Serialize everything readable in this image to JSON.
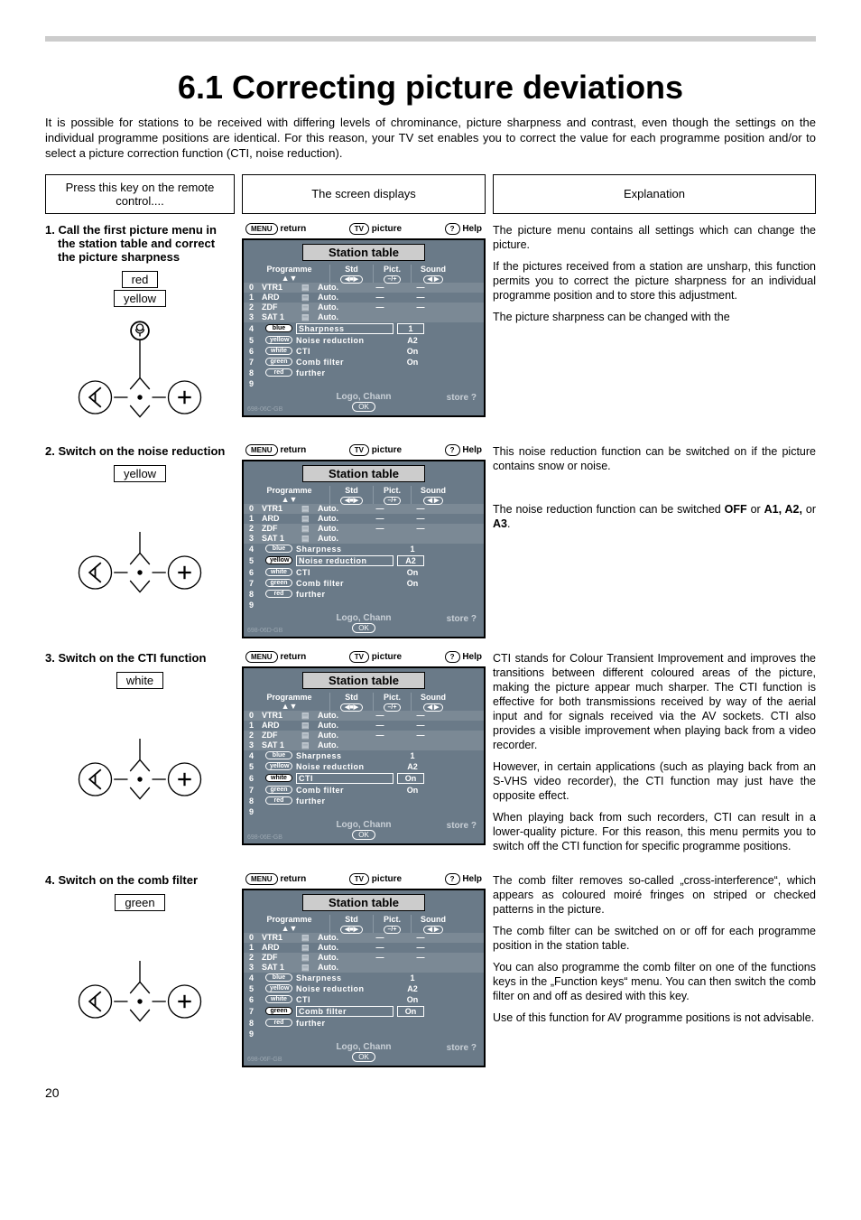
{
  "page_title": "6.1 Correcting picture deviations",
  "page_number": "20",
  "intro": "It is possible for stations to be received with differing levels of chrominance, picture sharpness and contrast, even though the settings on the individual programme positions are identical. For this reason, your TV set enables you to correct the value for each programme position and/or to select a picture correction function (CTI, noise reduction).",
  "header_remote": "Press this key on the remote control....",
  "header_screen": "The screen displays",
  "header_explanation": "Explanation",
  "osd_common": {
    "topbar_return": "return",
    "topbar_return_chip": "MENU",
    "topbar_picture": "picture",
    "topbar_picture_chip": "TV",
    "topbar_help": "Help",
    "topbar_help_chip": "?",
    "title": "Station table",
    "col_programme": "Programme",
    "col_std": "Std",
    "col_pict": "Pict.",
    "col_sound": "Sound",
    "stations": [
      {
        "num": "0",
        "name": "VTR1",
        "std": "Auto.",
        "pict": "—",
        "sound": "—",
        "alt": true
      },
      {
        "num": "1",
        "name": "ARD",
        "std": "Auto.",
        "pict": "—",
        "sound": "—",
        "alt": false
      },
      {
        "num": "2",
        "name": "ZDF",
        "std": "Auto.",
        "pict": "—",
        "sound": "—",
        "alt": true
      },
      {
        "num": "3",
        "name": "SAT 1",
        "std": "Auto.",
        "pict": "",
        "sound": "",
        "alt": true
      }
    ],
    "funcs": [
      {
        "num": "4"
      },
      {
        "num": "5"
      },
      {
        "num": "6"
      },
      {
        "num": "7"
      },
      {
        "num": "8"
      },
      {
        "num": "9"
      }
    ],
    "func_labels": {
      "sharpness": "Sharpness",
      "noise": "Noise reduction",
      "cti": "CTI",
      "comb": "Comb filter",
      "further": "further"
    },
    "func_vals": {
      "sharpness": "1",
      "noise": "A2",
      "cti": "On",
      "comb": "On"
    },
    "chip_blue": "blue",
    "chip_yellow": "yellow",
    "chip_white": "white",
    "chip_green": "green",
    "chip_red": "red",
    "logo": "Logo, Chann",
    "store": "store ?",
    "ok": "OK"
  },
  "footers": {
    "s1": "698-06C-GB",
    "s2": "698-06D-GB",
    "s3": "698-06E-GB",
    "s4": "698-06F-GB"
  },
  "steps": [
    {
      "title": "1. Call the first picture menu in the station table and correct the picture sharpness",
      "colors": [
        "red",
        "yellow"
      ],
      "selected": "sharpness",
      "expl": [
        "The picture menu contains all settings which can change the picture.",
        "If the pictures received from a station are unsharp, this function permits you to correct the picture sharpness for an individual programme position and to store this adjustment.",
        "The picture sharpness can be changed with the"
      ],
      "show_mic": true
    },
    {
      "title": "2. Switch on the noise reduction",
      "colors": [
        "yellow"
      ],
      "selected": "noise",
      "expl": [
        "This noise reduction function can be switched on if the picture contains snow or noise.",
        "",
        "The noise reduction function can be switched <b>OFF</b> or <b>A1, A2,</b> or <b>A3</b>."
      ]
    },
    {
      "title": "3. Switch on the CTI function",
      "colors": [
        "white"
      ],
      "selected": "cti",
      "expl": [
        "CTI stands for Colour Transient Improvement and improves the transitions between different coloured areas of the picture, making the picture appear much sharper. The CTI function is effective for both transmissions received by way of the aerial input and for signals received via the AV sockets. CTI also provides a visible improvement when playing back from a video recorder.",
        "However, in certain applications (such as playing back from an S-VHS video recorder), the CTI function may just have the opposite effect.",
        "When playing back from such recorders, CTI can result in a lower-quality picture. For this reason, this menu permits you to switch off the CTI function for specific programme positions."
      ]
    },
    {
      "title": "4. Switch on the comb filter",
      "colors": [
        "green"
      ],
      "selected": "comb",
      "expl": [
        "The comb filter removes so-called „cross-interference“, which appears as coloured moiré fringes on striped or checked patterns in the picture.",
        "The comb filter can be switched on or off for each programme position in the station table.",
        "You can also programme the comb filter on one of the functions keys in the „Function keys“ menu. You can then switch the comb filter on and off as desired with this key.",
        "Use of this function for AV programme positions is not advisable."
      ]
    }
  ]
}
